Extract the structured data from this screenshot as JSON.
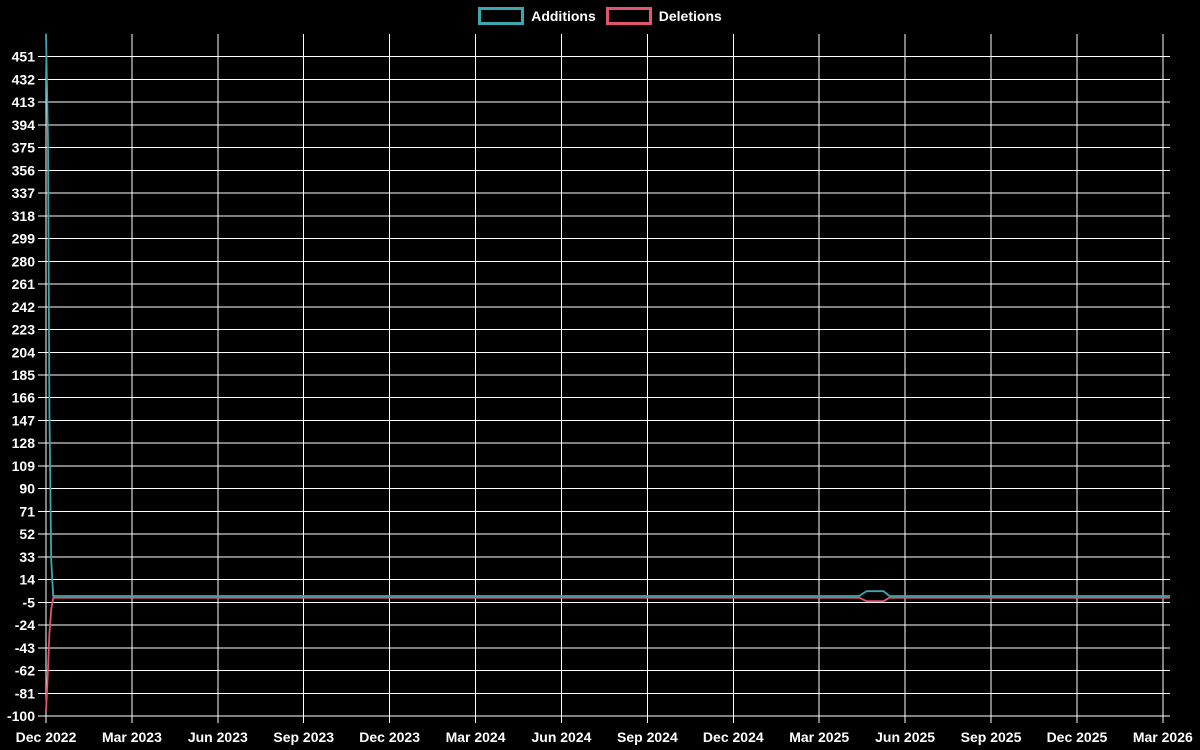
{
  "page": {
    "background": "#000000",
    "grid_color": "#ffffff",
    "text_color": "#ffffff"
  },
  "legend": {
    "items": [
      {
        "label": "Additions",
        "color": "#3aa8ae"
      },
      {
        "label": "Deletions",
        "color": "#e2556f"
      }
    ]
  },
  "chart_data": {
    "type": "line",
    "title": "",
    "xlabel": "",
    "ylabel": "",
    "grid": true,
    "legend_position": "top-center",
    "x_axis": {
      "tick_labels": [
        "Dec 2022",
        "Mar 2023",
        "Jun 2023",
        "Sep 2023",
        "Dec 2023",
        "Mar 2024",
        "Jun 2024",
        "Sep 2024",
        "Dec 2024",
        "Mar 2025",
        "Jun 2025",
        "Sep 2025",
        "Dec 2025",
        "Mar 2026"
      ],
      "tick_step_months": 3,
      "span_months": 39.25,
      "x_unit": "months since Dec 2022"
    },
    "y_axis": {
      "min": -100,
      "max": 470,
      "tick_min": -100,
      "tick_max": 451,
      "tick_step": 19
    },
    "series": [
      {
        "name": "Additions",
        "color": "#3aa8ae",
        "points": [
          [
            0,
            470
          ],
          [
            0.07,
            380
          ],
          [
            0.12,
            156
          ],
          [
            0.18,
            30
          ],
          [
            0.25,
            0
          ],
          [
            28.4,
            0
          ],
          [
            28.65,
            4
          ],
          [
            29.25,
            4
          ],
          [
            29.45,
            0
          ],
          [
            39.25,
            0
          ]
        ]
      },
      {
        "name": "Deletions",
        "color": "#e2556f",
        "points": [
          [
            0,
            -95
          ],
          [
            0.07,
            -60
          ],
          [
            0.12,
            -30
          ],
          [
            0.18,
            -10
          ],
          [
            0.25,
            0
          ],
          [
            28.4,
            0
          ],
          [
            28.65,
            -3
          ],
          [
            29.25,
            -3
          ],
          [
            29.45,
            0
          ],
          [
            39.25,
            0
          ]
        ]
      }
    ]
  }
}
